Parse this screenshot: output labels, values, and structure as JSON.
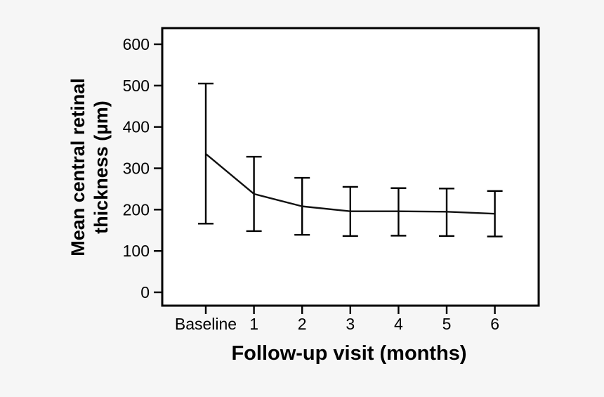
{
  "figure": {
    "background_color": "#f6f6f6",
    "plot_background_color": "#ffffff",
    "axis_color": "#000000",
    "line_color": "#111111"
  },
  "chart_data": {
    "type": "line",
    "title": "",
    "xlabel": "Follow-up visit (months)",
    "ylabel": "Mean central retinal thickness (µm)",
    "ylabel_lines": [
      "Mean central retinal",
      "thickness (µm)"
    ],
    "categories": [
      "Baseline",
      "1",
      "2",
      "3",
      "4",
      "5",
      "6"
    ],
    "yticks": [
      0,
      100,
      200,
      300,
      400,
      500,
      600
    ],
    "ylim": [
      0,
      600
    ],
    "grid": false,
    "legend": "none",
    "marker": "none",
    "error_bars": "sd-vertical-with-caps",
    "series": [
      {
        "name": "Mean central retinal thickness",
        "values": [
          335,
          238,
          208,
          196,
          196,
          195,
          190
        ],
        "error_lower": [
          166,
          148,
          139,
          136,
          137,
          136,
          135
        ],
        "error_upper": [
          505,
          328,
          277,
          255,
          252,
          251,
          245
        ]
      }
    ]
  }
}
